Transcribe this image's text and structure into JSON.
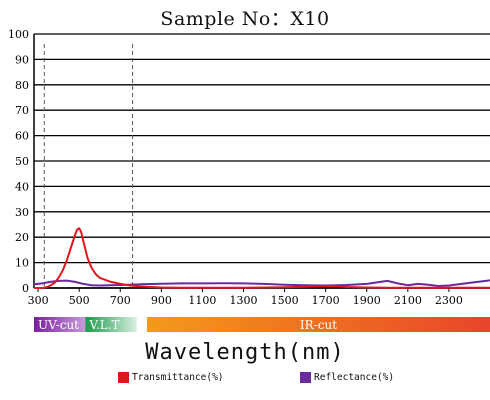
{
  "chart_data": {
    "type": "line",
    "title": "Sample No：X10",
    "xlabel": "Wavelength(nm)",
    "ylabel": "",
    "xlim": [
      280,
      2500
    ],
    "ylim": [
      0,
      100
    ],
    "yticks": [
      0,
      10,
      20,
      30,
      40,
      50,
      60,
      70,
      80,
      90,
      100
    ],
    "xticks": [
      300,
      500,
      700,
      900,
      1100,
      1300,
      1500,
      1700,
      1900,
      2100,
      2300
    ],
    "grid": "horizontal",
    "reference_lines_x": [
      330,
      760
    ],
    "bands": [
      {
        "label": "UV-cut",
        "from": 280,
        "to": 530,
        "color_from": "#7a1fa2",
        "color_to": "#c79ad9"
      },
      {
        "label": "V.L.T",
        "from": 530,
        "to": 780,
        "color_from": "#1a9a4a",
        "color_to": "#d9efe0"
      },
      {
        "label": "IR-cut",
        "from": 830,
        "to": 2500,
        "color_from": "#f49a1a",
        "color_to": "#e8452a"
      }
    ],
    "series": [
      {
        "name": "Transmittance(%)",
        "color": "#e0161c",
        "x": [
          280,
          320,
          350,
          380,
          400,
          420,
          440,
          460,
          480,
          490,
          500,
          510,
          520,
          540,
          560,
          580,
          600,
          650,
          700,
          750,
          800,
          900,
          1000,
          1100,
          1200,
          1300,
          1400,
          1500,
          1600,
          1700,
          1750,
          1800,
          1900,
          2000,
          2100,
          2200,
          2300,
          2400,
          2500
        ],
        "y": [
          0,
          0,
          0.5,
          2,
          4,
          7,
          11,
          16,
          21,
          23,
          23.5,
          22,
          18.5,
          12,
          8,
          5.5,
          4,
          2.5,
          1.6,
          1.0,
          0.6,
          0.2,
          0.1,
          0.1,
          0.1,
          0.1,
          0.2,
          0.3,
          0.5,
          0.7,
          0.7,
          0.4,
          0.2,
          0.1,
          0.1,
          0.1,
          0.1,
          0.1,
          0.1
        ]
      },
      {
        "name": "Reflectance(%)",
        "color": "#6a2a9a",
        "x": [
          280,
          320,
          360,
          400,
          440,
          480,
          520,
          560,
          600,
          700,
          800,
          900,
          1000,
          1100,
          1200,
          1300,
          1400,
          1500,
          1600,
          1700,
          1800,
          1900,
          1950,
          2000,
          2050,
          2100,
          2150,
          2200,
          2250,
          2300,
          2400,
          2500
        ],
        "y": [
          1.5,
          1.8,
          2.4,
          2.8,
          2.9,
          2.4,
          1.6,
          1.1,
          1.0,
          1.2,
          1.5,
          1.7,
          1.8,
          1.8,
          1.9,
          1.8,
          1.6,
          1.3,
          1.1,
          1.0,
          1.2,
          1.6,
          2.2,
          2.8,
          1.8,
          1.1,
          1.6,
          1.3,
          0.8,
          1.0,
          2.0,
          3.0
        ]
      }
    ]
  }
}
